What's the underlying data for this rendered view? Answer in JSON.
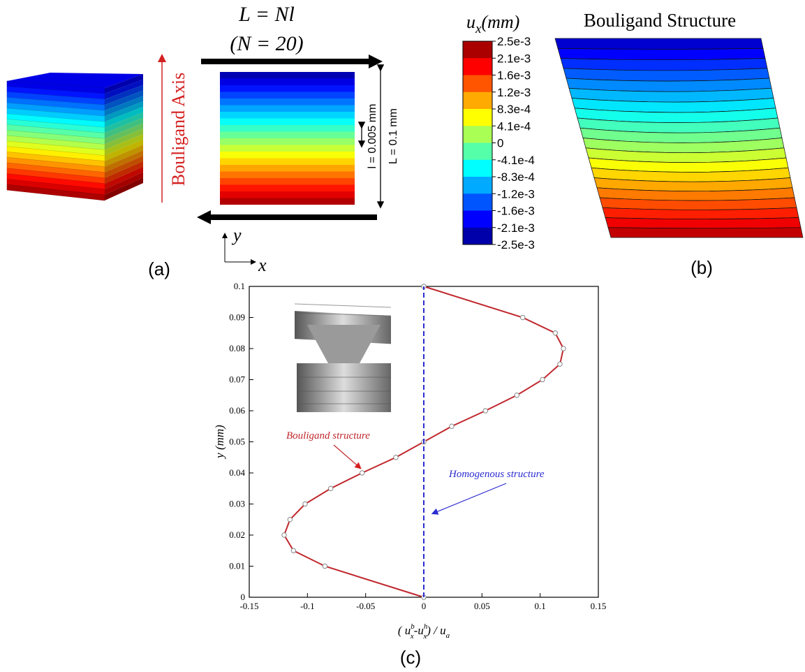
{
  "panel_a": {
    "equation": "L = Nl",
    "count": "(N = 20)",
    "axis_label": "Bouligand Axis",
    "layer_thickness": "l = 0.005 mm",
    "total_thickness": "L = 0.1 mm",
    "y_label": "y",
    "x_label": "x",
    "caption": "(a)"
  },
  "panel_b": {
    "colorbar_title_parts": [
      "u",
      "x",
      "(mm)"
    ],
    "colorbar_labels": [
      "2.5e-3",
      "2.1e-3",
      "1.6e-3",
      "1.2e-3",
      "8.3e-4",
      "4.1e-4",
      "0",
      "-4.1e-4",
      "-8.3e-4",
      "-1.2e-3",
      "-1.6e-3",
      "-2.1e-3",
      "-2.5e-3"
    ],
    "title": "Bouligand Structure",
    "caption": "(b)"
  },
  "chart_data": {
    "type": "line",
    "caption": "(c)",
    "ylabel": "y (mm)",
    "xlabel_parts": [
      "( u",
      "b",
      "x",
      "-u",
      "h",
      "x",
      ") / u",
      "a"
    ],
    "xlim": [
      -0.15,
      0.15
    ],
    "xticks": [
      -0.15,
      -0.1,
      -0.05,
      0,
      0.05,
      0.1,
      0.15
    ],
    "ylim": [
      0,
      0.1
    ],
    "yticks": [
      0,
      0.01,
      0.02,
      0.03,
      0.04,
      0.05,
      0.06,
      0.07,
      0.08,
      0.09,
      0.1
    ],
    "series": [
      {
        "name": "Bouligand structure",
        "color": "#c0272d",
        "marker": "circle",
        "x": [
          0,
          -0.085,
          -0.112,
          -0.12,
          -0.115,
          -0.102,
          -0.08,
          -0.053,
          -0.024,
          0,
          0.024,
          0.053,
          0.08,
          0.102,
          0.117,
          0.12,
          0.113,
          0.085,
          0
        ],
        "y": [
          0,
          0.01,
          0.015,
          0.02,
          0.025,
          0.03,
          0.035,
          0.04,
          0.045,
          0.05,
          0.055,
          0.06,
          0.065,
          0.07,
          0.075,
          0.08,
          0.085,
          0.09,
          0.1
        ]
      },
      {
        "name": "Homogenous structure",
        "color": "#2b2bd0",
        "dashed": true,
        "x": [
          0,
          0
        ],
        "y": [
          0,
          0.1
        ]
      }
    ]
  }
}
